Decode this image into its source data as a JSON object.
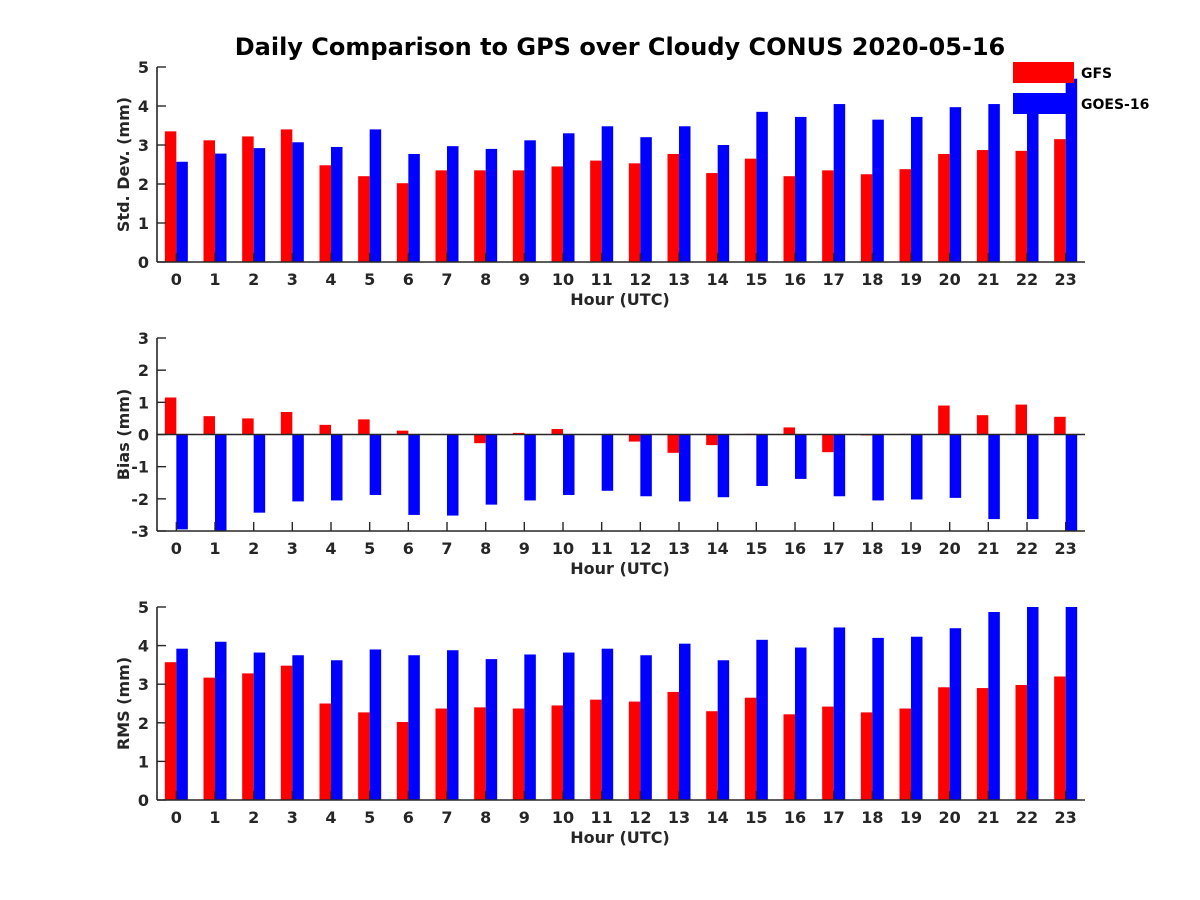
{
  "figure_title": "Daily Comparison to GPS over Cloudy CONUS 2020-05-16",
  "legend": [
    {
      "label": "GFS",
      "color": "#ff0000"
    },
    {
      "label": "GOES-16",
      "color": "#0000ff"
    }
  ],
  "chart_data": [
    {
      "type": "bar",
      "xlabel": "Hour (UTC)",
      "ylabel": "Std. Dev. (mm)",
      "ylim": [
        0,
        5
      ],
      "yticks": [
        0,
        1,
        2,
        3,
        4,
        5
      ],
      "categories": [
        "0",
        "1",
        "2",
        "3",
        "4",
        "5",
        "6",
        "7",
        "8",
        "9",
        "10",
        "11",
        "12",
        "13",
        "14",
        "15",
        "16",
        "17",
        "18",
        "19",
        "20",
        "21",
        "22",
        "23"
      ],
      "series": [
        {
          "name": "GFS",
          "color": "#ff0000",
          "values": [
            3.35,
            3.12,
            3.22,
            3.4,
            2.48,
            2.2,
            2.02,
            2.35,
            2.35,
            2.35,
            2.45,
            2.6,
            2.53,
            2.77,
            2.28,
            2.65,
            2.2,
            2.35,
            2.25,
            2.38,
            2.77,
            2.87,
            2.85,
            3.15
          ]
        },
        {
          "name": "GOES-16",
          "color": "#0000ff",
          "values": [
            2.57,
            2.78,
            2.92,
            3.07,
            2.95,
            3.4,
            2.77,
            2.97,
            2.9,
            3.12,
            3.3,
            3.48,
            3.2,
            3.48,
            3.0,
            3.85,
            3.72,
            4.05,
            3.65,
            3.72,
            3.97,
            4.05,
            4.33,
            4.7
          ]
        }
      ]
    },
    {
      "type": "bar",
      "xlabel": "Hour (UTC)",
      "ylabel": "Bias (mm)",
      "ylim": [
        -3,
        3
      ],
      "yticks": [
        -3,
        -2,
        -1,
        0,
        1,
        2,
        3
      ],
      "categories": [
        "0",
        "1",
        "2",
        "3",
        "4",
        "5",
        "6",
        "7",
        "8",
        "9",
        "10",
        "11",
        "12",
        "13",
        "14",
        "15",
        "16",
        "17",
        "18",
        "19",
        "20",
        "21",
        "22",
        "23"
      ],
      "series": [
        {
          "name": "GFS",
          "color": "#ff0000",
          "values": [
            1.15,
            0.57,
            0.5,
            0.7,
            0.3,
            0.47,
            0.12,
            0.0,
            -0.27,
            0.05,
            0.17,
            0.0,
            -0.22,
            -0.57,
            -0.33,
            0.02,
            0.22,
            -0.55,
            -0.03,
            0.02,
            0.9,
            0.6,
            0.93,
            0.55
          ]
        },
        {
          "name": "GOES-16",
          "color": "#0000ff",
          "values": [
            -2.95,
            -3.0,
            -2.43,
            -2.08,
            -2.05,
            -1.88,
            -2.5,
            -2.52,
            -2.18,
            -2.05,
            -1.88,
            -1.75,
            -1.92,
            -2.08,
            -1.95,
            -1.6,
            -1.38,
            -1.92,
            -2.05,
            -2.02,
            -1.97,
            -2.63,
            -2.63,
            -3.0
          ]
        }
      ]
    },
    {
      "type": "bar",
      "xlabel": "Hour (UTC)",
      "ylabel": "RMS (mm)",
      "ylim": [
        0,
        5
      ],
      "yticks": [
        0,
        1,
        2,
        3,
        4,
        5
      ],
      "categories": [
        "0",
        "1",
        "2",
        "3",
        "4",
        "5",
        "6",
        "7",
        "8",
        "9",
        "10",
        "11",
        "12",
        "13",
        "14",
        "15",
        "16",
        "17",
        "18",
        "19",
        "20",
        "21",
        "22",
        "23"
      ],
      "series": [
        {
          "name": "GFS",
          "color": "#ff0000",
          "values": [
            3.57,
            3.17,
            3.28,
            3.48,
            2.5,
            2.27,
            2.02,
            2.37,
            2.4,
            2.37,
            2.45,
            2.6,
            2.55,
            2.8,
            2.3,
            2.65,
            2.22,
            2.42,
            2.27,
            2.37,
            2.92,
            2.9,
            2.98,
            3.2
          ]
        },
        {
          "name": "GOES-16",
          "color": "#0000ff",
          "values": [
            3.92,
            4.1,
            3.82,
            3.75,
            3.62,
            3.9,
            3.75,
            3.88,
            3.65,
            3.77,
            3.82,
            3.92,
            3.75,
            4.05,
            3.62,
            4.15,
            3.95,
            4.47,
            4.2,
            4.23,
            4.45,
            4.87,
            5.0,
            5.0
          ]
        }
      ]
    }
  ]
}
